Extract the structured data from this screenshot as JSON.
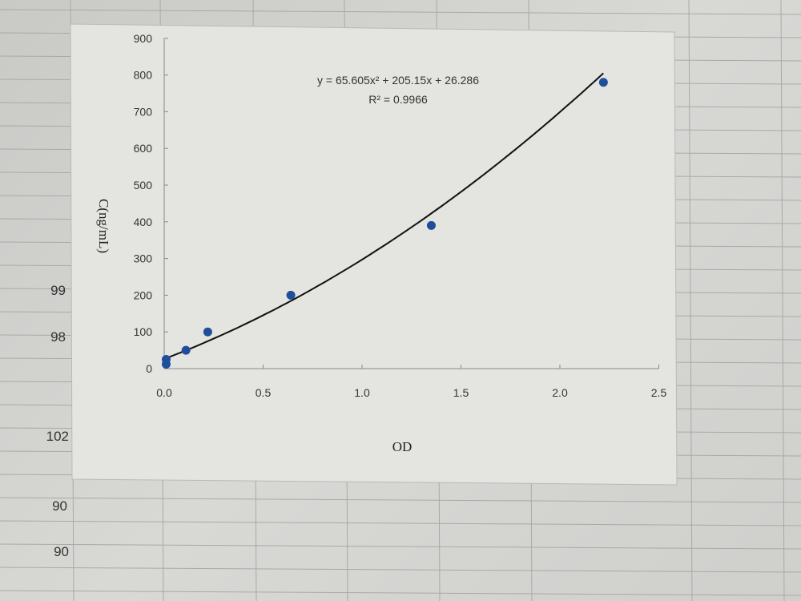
{
  "spreadsheet": {
    "cell_values": [
      "99",
      "98",
      "102",
      "90",
      "90"
    ]
  },
  "chart_data": {
    "type": "scatter",
    "title": "",
    "xlabel": "OD",
    "ylabel": "C(ng/mL)",
    "xlim": [
      0,
      2.5
    ],
    "ylim": [
      0,
      900
    ],
    "x_ticks": [
      "0.0",
      "0.5",
      "1.0",
      "1.5",
      "2.0",
      "2.5"
    ],
    "y_ticks": [
      "0",
      "100",
      "200",
      "300",
      "400",
      "500",
      "600",
      "700",
      "800",
      "900"
    ],
    "grid": false,
    "points": [
      {
        "x": 0.01,
        "y": 12
      },
      {
        "x": 0.01,
        "y": 25
      },
      {
        "x": 0.11,
        "y": 50
      },
      {
        "x": 0.22,
        "y": 100
      },
      {
        "x": 0.64,
        "y": 200
      },
      {
        "x": 1.35,
        "y": 390
      },
      {
        "x": 2.22,
        "y": 780
      }
    ],
    "trendline": {
      "type": "polynomial-2",
      "coefficients": {
        "a": 65.605,
        "b": 205.15,
        "c": 26.286
      },
      "equation": "y = 65.605x² + 205.15x + 26.286",
      "r_squared": "R² = 0.9966"
    },
    "colors": {
      "point": "#1f4e9a",
      "trendline": "#111111",
      "plot_bg": "#e4e4e1"
    }
  }
}
